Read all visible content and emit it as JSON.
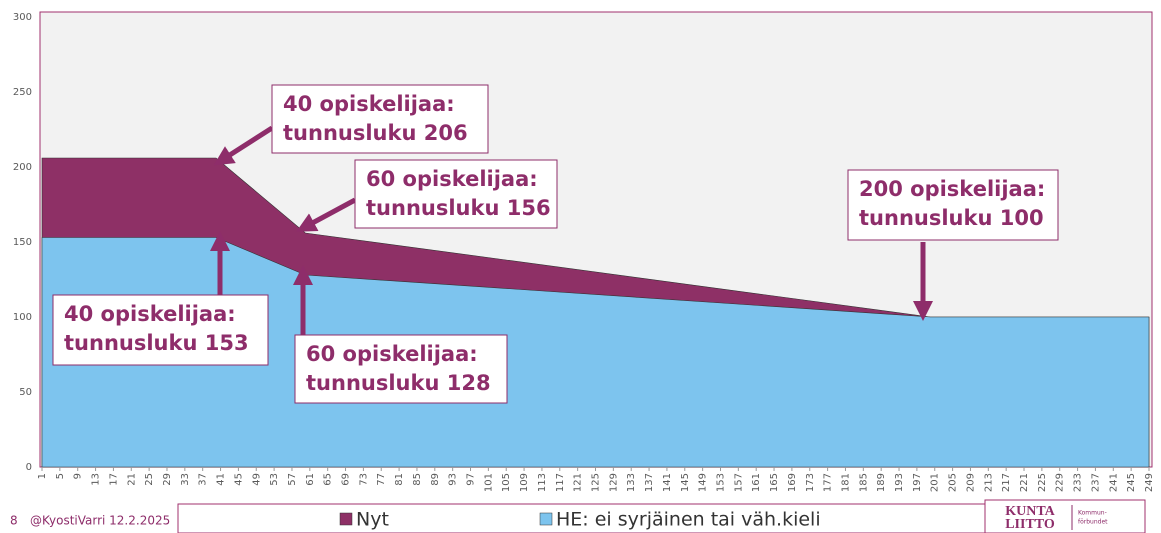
{
  "chart_data": {
    "type": "area",
    "x": [
      1,
      40,
      60,
      200,
      249
    ],
    "series": [
      {
        "name": "Nyt",
        "color": "#8e3066",
        "values": [
          206,
          206,
          156,
          100,
          100
        ]
      },
      {
        "name": "HE: ei syrjäinen tai väh.kieli",
        "color": "#7dc4ee",
        "values": [
          153,
          153,
          128,
          100,
          100
        ]
      }
    ],
    "xlim": [
      1,
      249
    ],
    "xticks": [
      1,
      5,
      9,
      13,
      17,
      21,
      25,
      29,
      33,
      37,
      41,
      45,
      49,
      53,
      57,
      61,
      65,
      69,
      73,
      77,
      81,
      85,
      89,
      93,
      97,
      101,
      105,
      109,
      113,
      117,
      121,
      125,
      129,
      133,
      137,
      141,
      145,
      149,
      153,
      157,
      161,
      165,
      169,
      173,
      177,
      181,
      185,
      189,
      193,
      197,
      201,
      205,
      209,
      213,
      217,
      221,
      225,
      229,
      233,
      237,
      241,
      245,
      249
    ],
    "ylim": [
      0,
      300
    ],
    "yticks": [
      0,
      50,
      100,
      150,
      200,
      250,
      300
    ],
    "legend": "bottom",
    "annotations": [
      {
        "lines": [
          "40 opiskelijaa:",
          "tunnusluku 206"
        ]
      },
      {
        "lines": [
          "60 opiskelijaa:",
          "tunnusluku 156"
        ]
      },
      {
        "lines": [
          "200 opiskelijaa:",
          "tunnusluku 100"
        ]
      },
      {
        "lines": [
          "40 opiskelijaa:",
          "tunnusluku 153"
        ]
      },
      {
        "lines": [
          "60 opiskelijaa:",
          "tunnusluku 128"
        ]
      }
    ]
  },
  "footer": {
    "page": "8",
    "author": "@KyostiVarri 12.2.2025",
    "logo": [
      "KUNTA",
      "LIITTO"
    ],
    "logo_sub": [
      "Kommun-",
      "förbundet"
    ]
  }
}
